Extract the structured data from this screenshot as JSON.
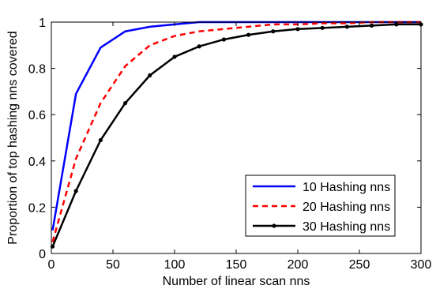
{
  "chart_data": {
    "type": "line",
    "title": "",
    "xlabel": "Number of linear scan nns",
    "ylabel": "Proportion of top hashing nns covered",
    "xlim": [
      0,
      300
    ],
    "ylim": [
      0,
      1
    ],
    "xticks": [
      "0",
      "50",
      "100",
      "150",
      "200",
      "250",
      "300"
    ],
    "yticks": [
      "0",
      "0.2",
      "0.4",
      "0.6",
      "0.8",
      "1"
    ],
    "grid": false,
    "legend_position": "bottom-right",
    "series": [
      {
        "name": "10 Hashing nns",
        "color": "#0000ff",
        "line_style": "solid",
        "marker": "none",
        "x": [
          1,
          20,
          40,
          60,
          80,
          100,
          120,
          140,
          160,
          180,
          200,
          220,
          240,
          260,
          280,
          300
        ],
        "y": [
          0.1,
          0.69,
          0.89,
          0.96,
          0.98,
          0.99,
          1.0,
          1.0,
          1.0,
          1.0,
          1.0,
          1.0,
          1.0,
          1.0,
          1.0,
          1.0
        ]
      },
      {
        "name": "20 Hashing nns",
        "color": "#ff0000",
        "line_style": "dashed",
        "marker": "none",
        "x": [
          1,
          20,
          40,
          60,
          80,
          100,
          120,
          140,
          160,
          180,
          200,
          220,
          240,
          260,
          280,
          300
        ],
        "y": [
          0.05,
          0.41,
          0.65,
          0.81,
          0.9,
          0.94,
          0.96,
          0.97,
          0.98,
          0.99,
          0.99,
          0.995,
          0.995,
          1.0,
          1.0,
          1.0
        ]
      },
      {
        "name": "30 Hashing nns",
        "color": "#000000",
        "line_style": "solid",
        "marker": "dot",
        "x": [
          1,
          20,
          40,
          60,
          80,
          100,
          120,
          140,
          160,
          180,
          200,
          220,
          240,
          260,
          280,
          300
        ],
        "y": [
          0.03,
          0.27,
          0.49,
          0.65,
          0.77,
          0.85,
          0.895,
          0.925,
          0.945,
          0.96,
          0.97,
          0.975,
          0.98,
          0.985,
          0.99,
          0.99
        ]
      }
    ]
  }
}
